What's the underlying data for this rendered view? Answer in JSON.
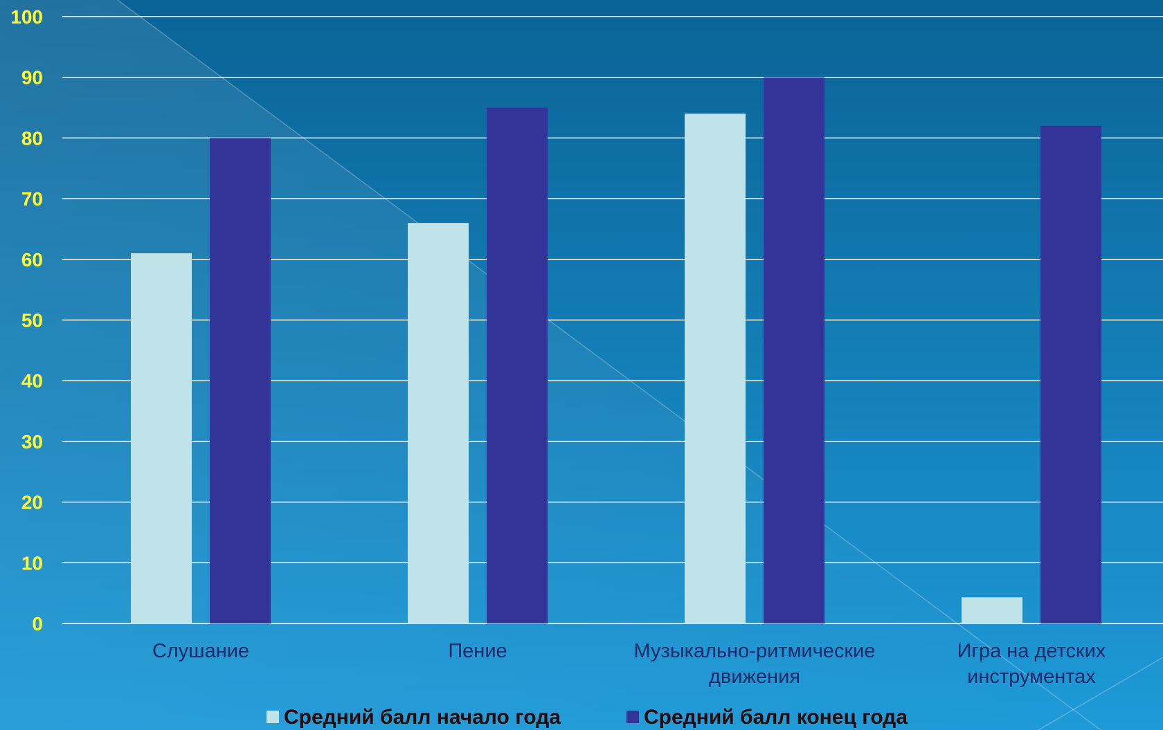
{
  "chart_data": {
    "type": "bar",
    "categories": [
      [
        "Слушание"
      ],
      [
        "Пение"
      ],
      [
        "Музыкально-ритмические",
        "движения"
      ],
      [
        "Игра на детских",
        "инструментах"
      ]
    ],
    "series": [
      {
        "name": "Средний балл начало года",
        "values": [
          61,
          66,
          84,
          4.3
        ],
        "color": "#bfe3e8"
      },
      {
        "name": "Средний балл конец года",
        "values": [
          80,
          85,
          90,
          82
        ],
        "color": "#333399"
      }
    ],
    "yticks": [
      "0",
      "10",
      "20",
      "30",
      "40",
      "50",
      "60",
      "70",
      "80",
      "90",
      "100"
    ],
    "ylim": [
      0,
      100
    ],
    "grid": true,
    "legend_position": "bottom",
    "colors": {
      "ytick": "#ffff33",
      "xtick": "#1d2a6b",
      "legend_text": "#2a0b0b",
      "gridline": "#ffffff",
      "background_top": "#0a6396",
      "background_bottom": "#1e9ad8"
    }
  }
}
